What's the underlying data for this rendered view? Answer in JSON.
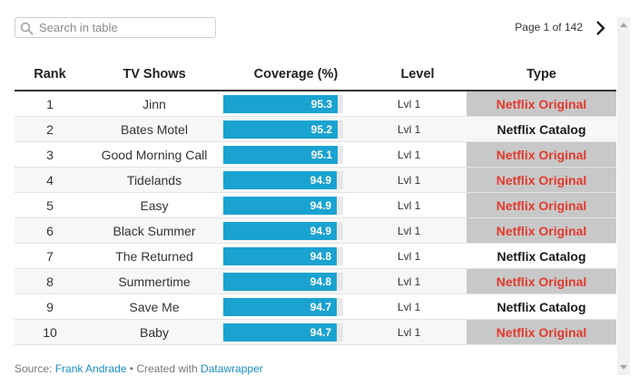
{
  "search": {
    "placeholder": "Search in table"
  },
  "pagination": {
    "label": "Page 1 of 142"
  },
  "table": {
    "columns": [
      "Rank",
      "TV Shows",
      "Coverage (%)",
      "Level",
      "Type"
    ],
    "coverage_max": 100,
    "bar_color": "#1aa3d1",
    "original_color": "#e23a2d",
    "rows": [
      {
        "rank": "1",
        "show": "Jinn",
        "coverage": 95.3,
        "level": "Lvl 1",
        "type": "Netflix Original"
      },
      {
        "rank": "2",
        "show": "Bates Motel",
        "coverage": 95.2,
        "level": "Lvl 1",
        "type": "Netflix Catalog"
      },
      {
        "rank": "3",
        "show": "Good Morning Call",
        "coverage": 95.1,
        "level": "Lvl 1",
        "type": "Netflix Original"
      },
      {
        "rank": "4",
        "show": "Tidelands",
        "coverage": 94.9,
        "level": "Lvl 1",
        "type": "Netflix Original"
      },
      {
        "rank": "5",
        "show": "Easy",
        "coverage": 94.9,
        "level": "Lvl 1",
        "type": "Netflix Original"
      },
      {
        "rank": "6",
        "show": "Black Summer",
        "coverage": 94.9,
        "level": "Lvl 1",
        "type": "Netflix Original"
      },
      {
        "rank": "7",
        "show": "The Returned",
        "coverage": 94.8,
        "level": "Lvl 1",
        "type": "Netflix Catalog"
      },
      {
        "rank": "8",
        "show": "Summertime",
        "coverage": 94.8,
        "level": "Lvl 1",
        "type": "Netflix Original"
      },
      {
        "rank": "9",
        "show": "Save Me",
        "coverage": 94.7,
        "level": "Lvl 1",
        "type": "Netflix Catalog"
      },
      {
        "rank": "10",
        "show": "Baby",
        "coverage": 94.7,
        "level": "Lvl 1",
        "type": "Netflix Original"
      }
    ]
  },
  "footer": {
    "source_label": "Source:",
    "source_name": "Frank Andrade",
    "separator": "•",
    "created_label": "Created with",
    "tool_name": "Datawrapper"
  }
}
